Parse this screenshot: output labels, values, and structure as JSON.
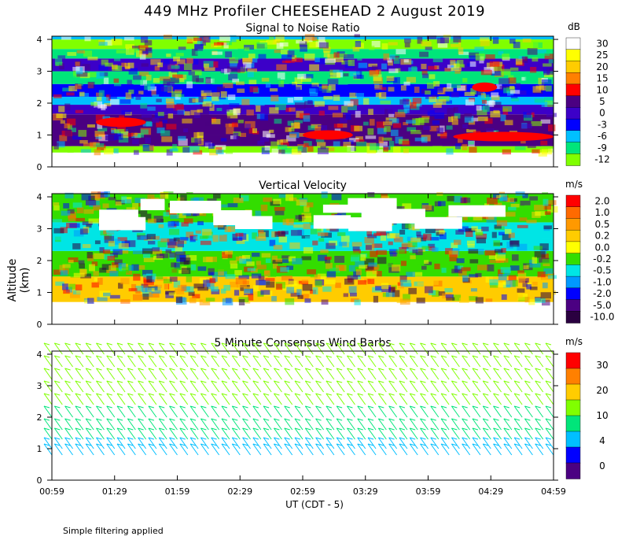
{
  "page": {
    "title": "449 MHz Profiler CHEESEHEAD  2 August 2019",
    "x_axis_label": "UT  (CDT - 5)",
    "y_axis_label": "Altitude (km)",
    "footer": "Simple filtering applied"
  },
  "chart_data": [
    {
      "type": "heatmap",
      "title": "Signal to Noise Ratio",
      "unit": "dB",
      "x_ticks": [
        "00:59",
        "01:29",
        "01:59",
        "02:29",
        "02:59",
        "03:29",
        "03:59",
        "04:29",
        "04:59"
      ],
      "y_ticks": [
        0,
        1,
        2,
        3,
        4
      ],
      "ylim": [
        0,
        4.1
      ],
      "colorbar": {
        "labels": [
          "30",
          "25",
          "20",
          "15",
          "10",
          "5",
          "0",
          "-3",
          "-6",
          "-9",
          "-12"
        ],
        "colors": [
          "#ffffff",
          "#ffff00",
          "#ffcc00",
          "#ff8000",
          "#ff0000",
          "#4b0082",
          "#3c00c8",
          "#0000ff",
          "#00bfff",
          "#00e57a",
          "#80ff00"
        ]
      },
      "rows": [
        {
          "alt_min": 0.0,
          "alt_max": 0.45,
          "color": "#ffffff"
        },
        {
          "alt_min": 0.45,
          "alt_max": 0.65,
          "color": "#80ff00"
        },
        {
          "alt_min": 0.65,
          "alt_max": 1.0,
          "color": "#4b0082"
        },
        {
          "alt_min": 1.0,
          "alt_max": 1.65,
          "color": "#4b0082"
        },
        {
          "alt_min": 1.65,
          "alt_max": 1.95,
          "color": "#3c00c8"
        },
        {
          "alt_min": 1.95,
          "alt_max": 2.2,
          "color": "#00bfff"
        },
        {
          "alt_min": 2.2,
          "alt_max": 2.6,
          "color": "#0000ff"
        },
        {
          "alt_min": 2.6,
          "alt_max": 3.0,
          "color": "#00e57a"
        },
        {
          "alt_min": 3.0,
          "alt_max": 3.4,
          "color": "#3c00c8"
        },
        {
          "alt_min": 3.4,
          "alt_max": 3.7,
          "color": "#00e57a"
        },
        {
          "alt_min": 3.7,
          "alt_max": 4.0,
          "color": "#80ff00"
        },
        {
          "alt_min": 4.0,
          "alt_max": 4.1,
          "color": "#00bfff"
        }
      ],
      "features": [
        {
          "label": "SNR max near 1.4 km",
          "t_start": 0.35,
          "t_end": 0.75,
          "alt": 1.4,
          "color": "#ff0000"
        },
        {
          "label": "SNR max near 1.0 km",
          "t_start": 2.0,
          "t_end": 2.4,
          "alt": 1.0,
          "color": "#ff0000"
        },
        {
          "label": "SNR max near 2.5 km",
          "t_start": 3.35,
          "t_end": 3.55,
          "alt": 2.5,
          "color": "#ff0000"
        },
        {
          "label": "SNR max 03:59-04:59",
          "t_start": 3.2,
          "t_end": 4.0,
          "alt": 0.95,
          "color": "#ff0000"
        }
      ]
    },
    {
      "type": "heatmap",
      "title": "Vertical Velocity",
      "unit": "m/s",
      "x_ticks": [
        "00:59",
        "01:29",
        "01:59",
        "02:29",
        "02:59",
        "03:29",
        "03:59",
        "04:29",
        "04:59"
      ],
      "y_ticks": [
        0,
        1,
        2,
        3,
        4
      ],
      "ylim": [
        0,
        4.1
      ],
      "colorbar": {
        "labels": [
          "2.0",
          "1.0",
          "0.5",
          "0.2",
          "0.0",
          "-0.2",
          "-0.5",
          "-1.0",
          "-2.0",
          "-5.0",
          "-10.0"
        ],
        "colors": [
          "#ff0000",
          "#ff6a00",
          "#ff9900",
          "#ffcc00",
          "#ffff00",
          "#33dd00",
          "#00e5e5",
          "#0099ff",
          "#0000ff",
          "#4b0082",
          "#2a0040"
        ]
      },
      "rows": [
        {
          "alt_min": 0.0,
          "alt_max": 0.7,
          "color": "#ffffff"
        },
        {
          "alt_min": 0.7,
          "alt_max": 1.5,
          "color": "#ffcc00"
        },
        {
          "alt_min": 1.5,
          "alt_max": 2.3,
          "color": "#33dd00"
        },
        {
          "alt_min": 2.3,
          "alt_max": 3.2,
          "color": "#00e5e5"
        },
        {
          "alt_min": 3.2,
          "alt_max": 4.1,
          "color": "#33dd00"
        }
      ],
      "features": []
    },
    {
      "type": "wind-barbs",
      "title": "5 Minute Consensus Wind Barbs",
      "unit": "m/s",
      "x_ticks": [
        "00:59",
        "01:29",
        "01:59",
        "02:29",
        "02:59",
        "03:29",
        "03:59",
        "04:29",
        "04:59"
      ],
      "y_ticks": [
        0,
        1,
        2,
        3,
        4
      ],
      "ylim": [
        0,
        4.1
      ],
      "colorbar": {
        "labels": [
          "30",
          "20",
          "10",
          "4",
          "0"
        ],
        "colors": [
          "#ff0000",
          "#ff8000",
          "#ffcc00",
          "#80ff00",
          "#00e57a",
          "#00bfff",
          "#0000ff",
          "#4b0082"
        ]
      },
      "barb_rows": [
        {
          "alt": 0.8,
          "speed": 4
        },
        {
          "alt": 1.0,
          "speed": 4
        },
        {
          "alt": 1.3,
          "speed": 6
        },
        {
          "alt": 1.6,
          "speed": 6
        },
        {
          "alt": 2.0,
          "speed": 8
        },
        {
          "alt": 2.4,
          "speed": 10
        },
        {
          "alt": 2.8,
          "speed": 10
        },
        {
          "alt": 3.2,
          "speed": 10
        },
        {
          "alt": 3.6,
          "speed": 10
        },
        {
          "alt": 4.0,
          "speed": 12
        }
      ]
    }
  ]
}
